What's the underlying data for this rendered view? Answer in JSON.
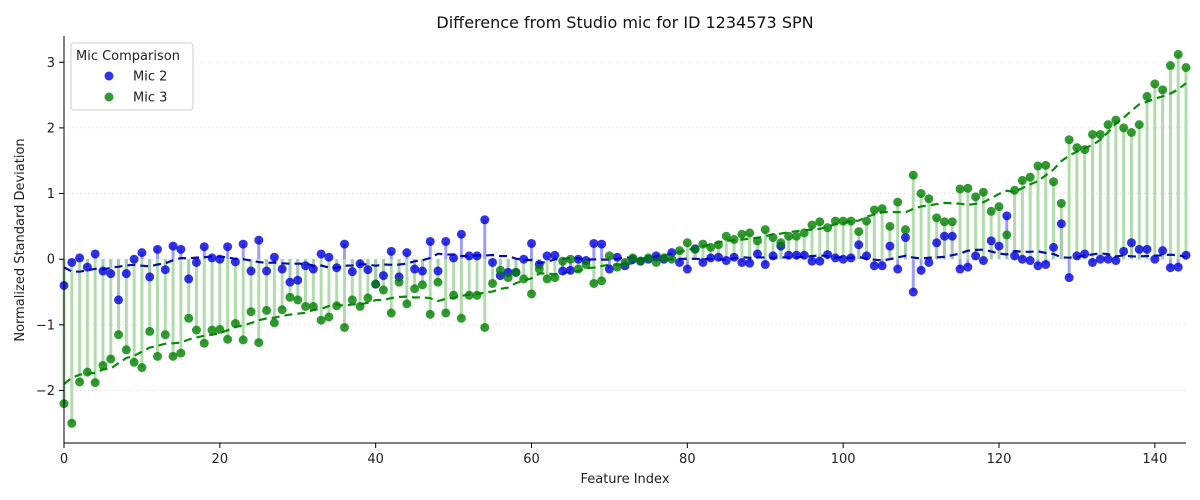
{
  "chart_data": {
    "type": "scatter",
    "title": "Difference from Studio mic for ID 1234573 SPN",
    "xlabel": "Feature Index",
    "ylabel": "Normalized Standard Deviation",
    "xlim": [
      0,
      144
    ],
    "ylim": [
      -2.8,
      3.4
    ],
    "xticks": [
      0,
      20,
      40,
      60,
      80,
      100,
      120,
      140
    ],
    "yticks": [
      -2,
      -1,
      0,
      1,
      2,
      3
    ],
    "grid": "horizontal dotted",
    "legend": {
      "title": "Mic Comparison",
      "placement": "top-left"
    },
    "series": [
      {
        "name": "Mic 2",
        "color": "#0000e0",
        "stem_color": "#8f8ff0",
        "trend_color": "#0a0aa8",
        "values": [
          -0.4,
          -0.05,
          0.02,
          -0.12,
          0.08,
          -0.18,
          -0.22,
          -0.62,
          -0.22,
          0.0,
          0.1,
          -0.27,
          0.15,
          -0.16,
          0.2,
          0.15,
          -0.3,
          -0.05,
          0.19,
          0.02,
          0.0,
          0.19,
          -0.04,
          0.23,
          -0.18,
          0.29,
          -0.18,
          0.03,
          -0.15,
          -0.35,
          -0.32,
          -0.1,
          -0.15,
          0.08,
          0.03,
          -0.13,
          0.23,
          -0.19,
          -0.07,
          -0.16,
          -0.38,
          -0.25,
          0.12,
          -0.27,
          0.1,
          -0.15,
          -0.18,
          0.27,
          -0.18,
          0.27,
          0.02,
          0.38,
          0.05,
          0.05,
          0.6,
          -0.05,
          -0.25,
          -0.2,
          -0.2,
          0.0,
          0.24,
          -0.08,
          0.05,
          0.06,
          -0.18,
          -0.17,
          0.0,
          -0.02,
          0.24,
          0.23,
          -0.15,
          0.03,
          -0.1,
          0.0,
          -0.03,
          0.0,
          0.05,
          0.0,
          0.1,
          -0.05,
          -0.15,
          0.16,
          -0.05,
          0.02,
          0.03,
          -0.02,
          0.03,
          -0.05,
          -0.06,
          0.08,
          -0.08,
          0.05,
          0.2,
          0.06,
          0.06,
          0.06,
          -0.03,
          -0.03,
          0.07,
          0.02,
          0.0,
          0.02,
          0.22,
          0.05,
          -0.1,
          -0.1,
          0.2,
          -0.15,
          0.33,
          -0.5,
          -0.17,
          -0.05,
          0.25,
          0.35,
          0.35,
          -0.15,
          -0.12,
          0.05,
          -0.02,
          0.28,
          0.2,
          0.66,
          0.05,
          0.0,
          -0.02,
          -0.1,
          -0.08,
          0.18,
          0.54,
          -0.28,
          0.05,
          0.08,
          -0.05,
          0.0,
          0.0,
          -0.02,
          0.12,
          0.25,
          0.15,
          0.15,
          0.0,
          0.13,
          -0.13,
          -0.12,
          0.06
        ]
      },
      {
        "name": "Mic 3",
        "color": "#008000",
        "stem_color": "#a6d6a1",
        "trend_color": "#0a8a0a",
        "values": [
          -2.2,
          -2.5,
          -1.87,
          -1.72,
          -1.88,
          -1.62,
          -1.52,
          -1.15,
          -1.38,
          -1.57,
          -1.65,
          -1.1,
          -1.48,
          -1.15,
          -1.48,
          -1.43,
          -0.9,
          -1.08,
          -1.28,
          -1.08,
          -1.07,
          -1.22,
          -0.98,
          -1.23,
          -0.8,
          -1.27,
          -0.78,
          -0.97,
          -0.77,
          -0.58,
          -0.62,
          -0.72,
          -0.72,
          -0.93,
          -0.88,
          -0.71,
          -1.04,
          -0.62,
          -0.72,
          -0.59,
          -0.38,
          -0.47,
          -0.82,
          -0.35,
          -0.68,
          -0.45,
          -0.39,
          -0.84,
          -0.35,
          -0.82,
          -0.55,
          -0.9,
          -0.55,
          -0.55,
          -1.04,
          -0.37,
          -0.17,
          -0.28,
          -0.2,
          -0.3,
          -0.53,
          -0.15,
          -0.3,
          -0.28,
          -0.03,
          0.0,
          -0.15,
          -0.08,
          -0.37,
          -0.33,
          0.05,
          -0.12,
          -0.05,
          0.02,
          -0.03,
          0.02,
          -0.05,
          0.02,
          0.0,
          0.13,
          0.25,
          0.15,
          0.23,
          0.18,
          0.22,
          0.35,
          0.3,
          0.38,
          0.4,
          0.28,
          0.45,
          0.33,
          0.25,
          0.35,
          0.35,
          0.4,
          0.52,
          0.57,
          0.48,
          0.58,
          0.58,
          0.58,
          0.42,
          0.58,
          0.75,
          0.77,
          0.5,
          0.87,
          0.45,
          1.28,
          1.0,
          0.92,
          0.63,
          0.57,
          0.57,
          1.07,
          1.08,
          0.95,
          1.02,
          0.73,
          0.8,
          0.37,
          1.05,
          1.2,
          1.25,
          1.42,
          1.43,
          1.18,
          0.85,
          1.82,
          1.7,
          1.67,
          1.9,
          1.9,
          2.05,
          2.12,
          2.0,
          1.93,
          2.05,
          2.48,
          2.67,
          2.58,
          2.95,
          3.12,
          2.92
        ]
      }
    ]
  }
}
